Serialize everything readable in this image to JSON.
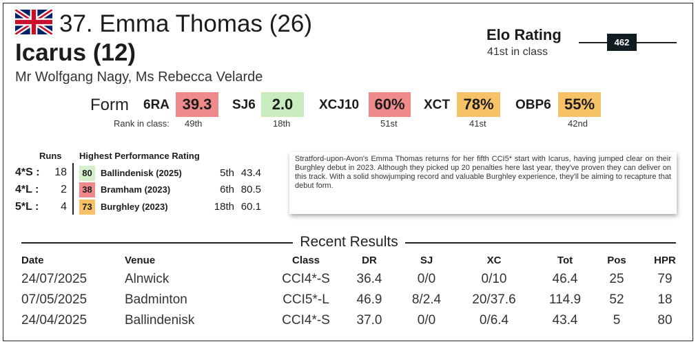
{
  "header": {
    "flag": "uk-flag",
    "rider_title": "37. Emma Thomas (26)",
    "horse_title": "Icarus (12)",
    "owners": "Mr Wolfgang Nagy, Ms Rebecca Velarde"
  },
  "elo": {
    "title": "Elo Rating",
    "rank_text": "41st in class",
    "value": "462"
  },
  "form": {
    "label": "Form",
    "rank_caption": "Rank in class:",
    "items": [
      {
        "code": "6RA",
        "value": "39.3",
        "rank": "49th",
        "color": "#f08a8a"
      },
      {
        "code": "SJ6",
        "value": "2.0",
        "rank": "18th",
        "color": "#c8ecbe"
      },
      {
        "code": "XCJ10",
        "value": "60%",
        "rank": "51st",
        "color": "#f08a8a"
      },
      {
        "code": "XCT",
        "value": "78%",
        "rank": "41st",
        "color": "#f7c168"
      },
      {
        "code": "OBP6",
        "value": "55%",
        "rank": "42nd",
        "color": "#f7c168"
      }
    ]
  },
  "hpr": {
    "runs_header": "Runs",
    "hpr_header": "Highest Performance Rating",
    "rows": [
      {
        "cat": "4*S :",
        "runs": "18",
        "badge": "80",
        "badge_color": "#d4f0cc",
        "event": "Ballindenisk  (2025)",
        "pos": "5th",
        "score": "43.4"
      },
      {
        "cat": "4*L :",
        "runs": "2",
        "badge": "38",
        "badge_color": "#f08a8a",
        "event": "Bramham  (2023)",
        "pos": "6th",
        "score": "80.5"
      },
      {
        "cat": "5*L :",
        "runs": "4",
        "badge": "73",
        "badge_color": "#f7c168",
        "event": "Burghley  (2023)",
        "pos": "18th",
        "score": "60.1"
      }
    ]
  },
  "note": {
    "text": "Stratford-upon-Avon's Emma Thomas returns for her fifth CCI5* start with Icarus, having jumped clear on their Burghley debut in 2023. Although they picked up 20 penalties here last year, they've proven they can deliver on this track. With a solid showjumping record and valuable Burghley experience, they'll be aiming to recapture that debut form."
  },
  "results": {
    "title": "Recent Results",
    "headers": {
      "date": "Date",
      "venue": "Venue",
      "class": "Class",
      "dr": "DR",
      "sj": "SJ",
      "xc": "XC",
      "tot": "Tot",
      "pos": "Pos",
      "hpr": "HPR"
    },
    "rows": [
      {
        "date": "24/07/2025",
        "venue": "Alnwick",
        "class": "CCI4*-S",
        "dr": "36.4",
        "sj": "0/0",
        "xc": "0/10",
        "tot": "46.4",
        "pos": "25",
        "hpr": "79"
      },
      {
        "date": "07/05/2025",
        "venue": "Badminton",
        "class": "CCI5*-L",
        "dr": "46.9",
        "sj": "8/2.4",
        "xc": "20/37.6",
        "tot": "114.9",
        "pos": "52",
        "hpr": "18"
      },
      {
        "date": "24/04/2025",
        "venue": "Ballindenisk",
        "class": "CCI4*-S",
        "dr": "37.0",
        "sj": "0/0",
        "xc": "0/6.4",
        "tot": "43.4",
        "pos": "5",
        "hpr": "80"
      }
    ]
  }
}
